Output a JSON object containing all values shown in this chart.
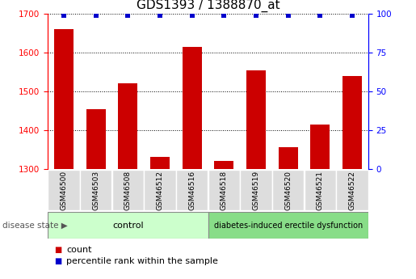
{
  "title": "GDS1393 / 1388870_at",
  "categories": [
    "GSM46500",
    "GSM46503",
    "GSM46508",
    "GSM46512",
    "GSM46516",
    "GSM46518",
    "GSM46519",
    "GSM46520",
    "GSM46521",
    "GSM46522"
  ],
  "counts": [
    1660,
    1455,
    1520,
    1330,
    1615,
    1320,
    1555,
    1355,
    1415,
    1540
  ],
  "percentiles": [
    99,
    99,
    99,
    99,
    99,
    99,
    99,
    99,
    99,
    99
  ],
  "bar_color": "#cc0000",
  "dot_color": "#0000cc",
  "ylim_left": [
    1300,
    1700
  ],
  "ylim_right": [
    0,
    100
  ],
  "yticks_left": [
    1300,
    1400,
    1500,
    1600,
    1700
  ],
  "yticks_right": [
    0,
    25,
    50,
    75,
    100
  ],
  "control_label": "control",
  "disease_label": "diabetes-induced erectile dysfunction",
  "disease_state_label": "disease state",
  "legend_count_label": "count",
  "legend_percentile_label": "percentile rank within the sample",
  "control_color": "#ccffcc",
  "disease_color": "#88dd88",
  "xlabel_area_color": "#dddddd",
  "grid_color": "#000000",
  "title_fontsize": 11,
  "tick_fontsize": 7.5,
  "bar_width": 0.6
}
